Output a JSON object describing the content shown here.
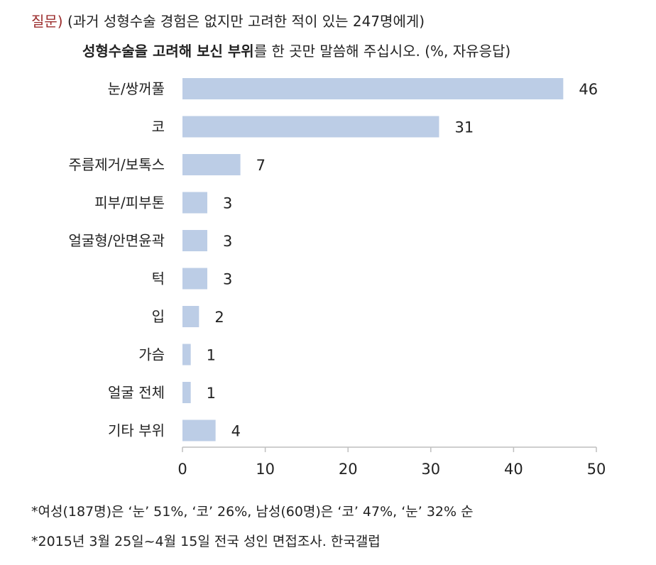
{
  "question": {
    "label": "질문)",
    "line1": "(과거 성형수술 경험은 없지만 고려한 적이 있는 247명에게)",
    "line2_bold": "성형수술을 고려해 보신 부위",
    "line2_rest": "를 한 곳만 말씀해 주십시오. (%, 자유응답)"
  },
  "chart_data": {
    "type": "bar",
    "orientation": "horizontal",
    "categories": [
      "눈/쌍꺼풀",
      "코",
      "주름제거/보톡스",
      "피부/피부톤",
      "얼굴형/안면윤곽",
      "턱",
      "입",
      "가슴",
      "얼굴 전체",
      "기타 부위"
    ],
    "values": [
      46,
      31,
      7,
      3,
      3,
      3,
      2,
      1,
      1,
      4
    ],
    "value_labels": [
      "46",
      "31",
      "7",
      "3",
      "3",
      "3",
      "2",
      "1",
      "1",
      "4"
    ],
    "xlim": [
      0,
      50
    ],
    "xticks": [
      0,
      10,
      20,
      30,
      40,
      50
    ],
    "grid": false,
    "bar_color": "#bccde6",
    "axis_color": "#bfbfbf"
  },
  "notes": [
    "*여성(187명)은 ‘눈’ 51%, ‘코’ 26%, 남성(60명)은 ‘코’ 47%, ‘눈’ 32% 순",
    "*2015년 3월 25일~4월 15일 전국 성인 면접조사. 한국갤럽"
  ]
}
